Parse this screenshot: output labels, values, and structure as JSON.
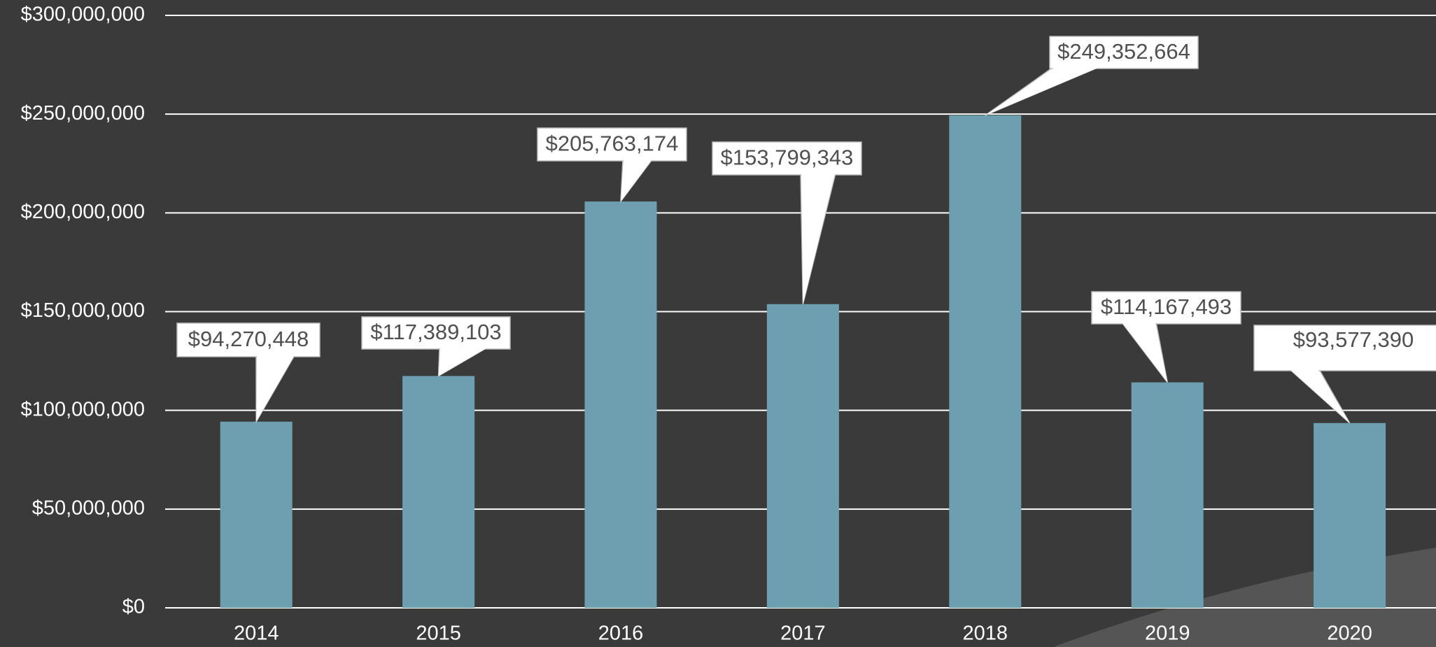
{
  "chart_data": {
    "type": "bar",
    "categories": [
      "2014",
      "2015",
      "2016",
      "2017",
      "2018",
      "2019",
      "2020"
    ],
    "values": [
      94270448,
      117389103,
      205763174,
      153799343,
      249352664,
      114167493,
      93577390
    ],
    "value_labels": [
      "$94,270,448",
      "$117,389,103",
      "$205,763,174",
      "$153,799,343",
      "$249,352,664",
      "$114,167,493",
      "$93,577,390"
    ],
    "color": "#6e9fb0",
    "ylim": [
      0,
      300000000
    ],
    "yticks": [
      {
        "value": 0,
        "label": "$0"
      },
      {
        "value": 50000000,
        "label": "$50,000,000"
      },
      {
        "value": 100000000,
        "label": "$100,000,000"
      },
      {
        "value": 150000000,
        "label": "$150,000,000"
      },
      {
        "value": 200000000,
        "label": "$200,000,000"
      },
      {
        "value": 250000000,
        "label": "$250,000,000"
      },
      {
        "value": 300000000,
        "label": "$300,000,000"
      }
    ],
    "grid": true
  }
}
